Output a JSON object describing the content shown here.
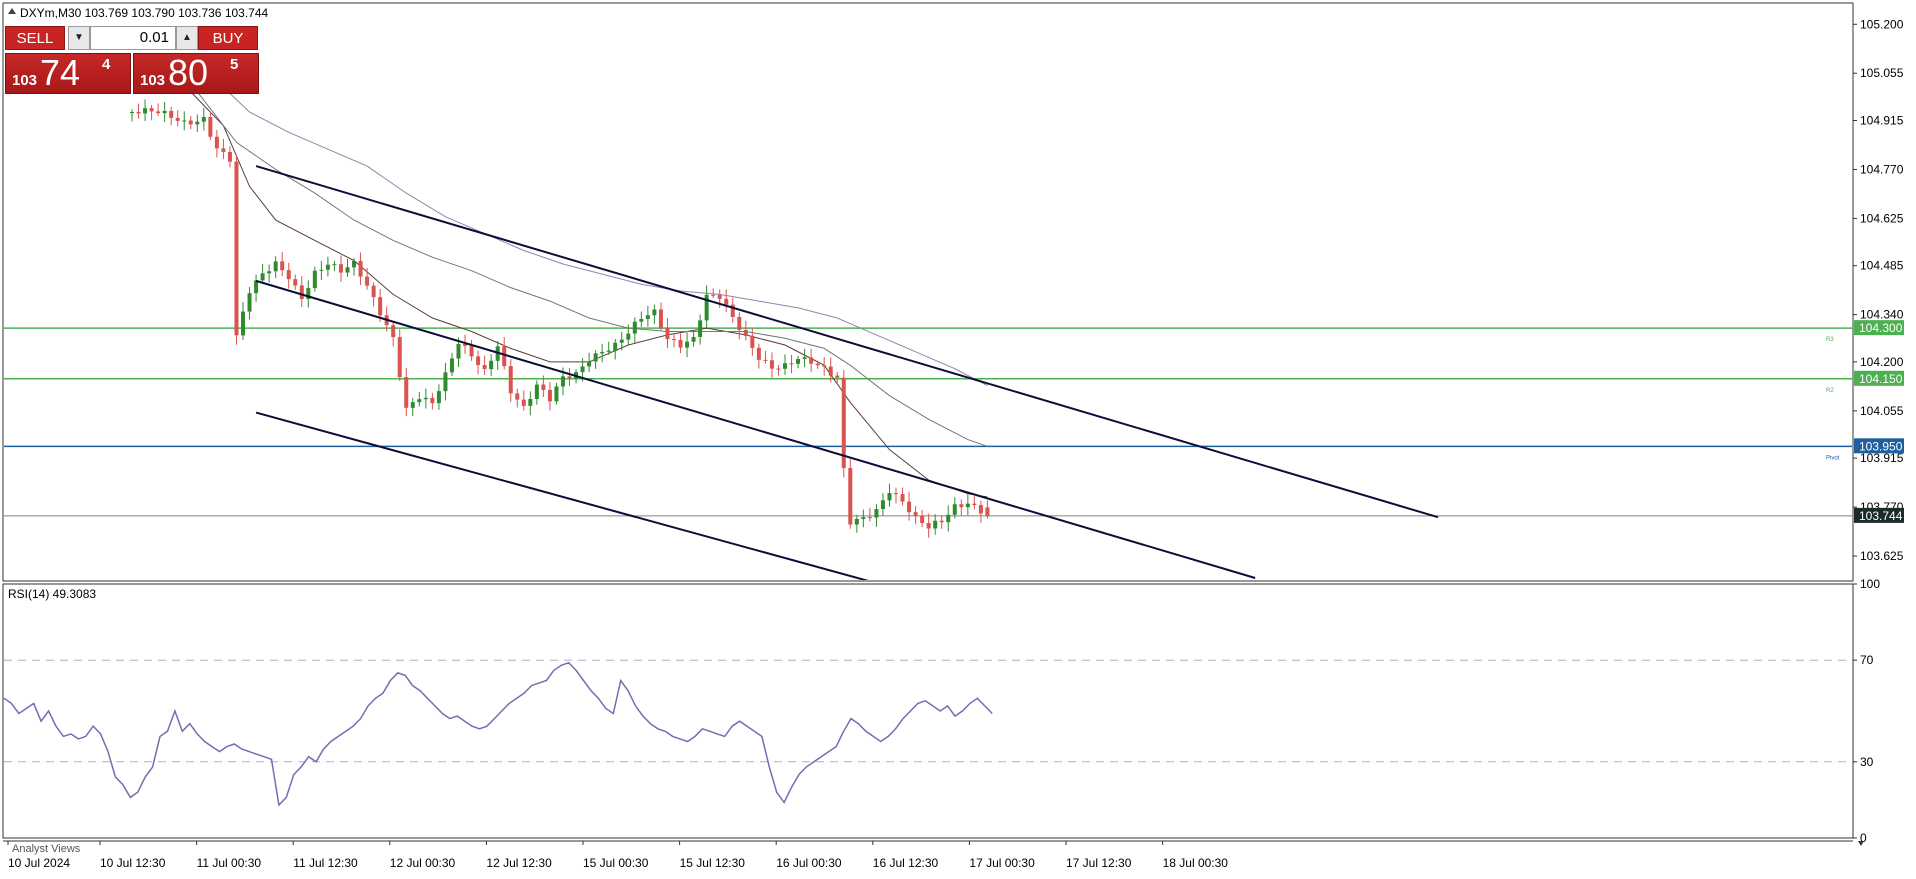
{
  "header": {
    "symbol_line": "DXYm,M30  103.769 103.790 103.736 103.744"
  },
  "trade_panel": {
    "sell_label": "SELL",
    "buy_label": "BUY",
    "lot": "0.01",
    "sell_price": {
      "prefix": "103",
      "big": "74",
      "sup": "4"
    },
    "buy_price": {
      "prefix": "103",
      "big": "80",
      "sup": "5"
    }
  },
  "rsi_label": "RSI(14) 49.3083",
  "footer_text": "Analyst Views",
  "colors": {
    "bull": "#2e8b2e",
    "bear": "#d9534f",
    "level_green": "#4caf50",
    "pivot_blue": "#1f5fa0",
    "channel": "#0d0d3a",
    "rsi_line": "#7a6ab0",
    "ma_fast": "#5b3a3a",
    "ma_mid": "#6e7a7a",
    "ma_slow": "#9a80a8"
  },
  "chart_data": [
    {
      "type": "candlestick",
      "symbol": "DXYm",
      "timeframe": "M30",
      "ohlc_last": {
        "open": 103.769,
        "high": 103.79,
        "low": 103.736,
        "close": 103.744
      },
      "ylim": [
        103.56,
        105.26
      ],
      "y_ticks": [
        "105.200",
        "105.055",
        "104.915",
        "104.770",
        "104.625",
        "104.485",
        "104.340",
        "104.200",
        "104.055",
        "103.915",
        "103.770",
        "103.625"
      ],
      "x_ticks": [
        "10 Jul 2024",
        "10 Jul 12:30",
        "11 Jul 00:30",
        "11 Jul 12:30",
        "12 Jul 00:30",
        "12 Jul 12:30",
        "15 Jul 00:30",
        "15 Jul 12:30",
        "16 Jul 00:30",
        "16 Jul 12:30",
        "17 Jul 00:30",
        "17 Jul 12:30",
        "18 Jul 00:30"
      ],
      "levels": [
        {
          "value": 104.3,
          "label": "104.300",
          "tag": "R3",
          "color": "#4caf50"
        },
        {
          "value": 104.15,
          "label": "104.150",
          "tag": "R2",
          "color": "#4caf50"
        },
        {
          "value": 103.95,
          "label": "103.950",
          "tag": "Pivot",
          "color": "#1f5fa0"
        }
      ],
      "current_price": {
        "value": 103.744,
        "label": "103.744"
      },
      "close_path": [
        [
          0,
          104.94
        ],
        [
          4,
          104.93
        ],
        [
          8,
          104.91
        ],
        [
          11,
          104.93
        ],
        [
          13,
          104.84
        ],
        [
          15,
          104.8
        ],
        [
          16,
          104.27
        ],
        [
          18,
          104.4
        ],
        [
          20,
          104.45
        ],
        [
          22,
          104.49
        ],
        [
          24,
          104.46
        ],
        [
          26,
          104.4
        ],
        [
          28,
          104.47
        ],
        [
          30,
          104.49
        ],
        [
          32,
          104.46
        ],
        [
          34,
          104.48
        ],
        [
          36,
          104.42
        ],
        [
          38,
          104.35
        ],
        [
          40,
          104.28
        ],
        [
          42,
          104.07
        ],
        [
          44,
          104.1
        ],
        [
          46,
          104.07
        ],
        [
          48,
          104.15
        ],
        [
          50,
          104.25
        ],
        [
          52,
          104.22
        ],
        [
          54,
          104.18
        ],
        [
          56,
          104.26
        ],
        [
          58,
          104.12
        ],
        [
          60,
          104.06
        ],
        [
          62,
          104.12
        ],
        [
          64,
          104.08
        ],
        [
          66,
          104.15
        ],
        [
          68,
          104.17
        ],
        [
          70,
          104.22
        ],
        [
          72,
          104.24
        ],
        [
          74,
          104.25
        ],
        [
          76,
          104.28
        ],
        [
          78,
          104.32
        ],
        [
          80,
          104.34
        ],
        [
          82,
          104.27
        ],
        [
          84,
          104.26
        ],
        [
          86,
          104.28
        ],
        [
          88,
          104.4
        ],
        [
          90,
          104.39
        ],
        [
          92,
          104.32
        ],
        [
          94,
          104.26
        ],
        [
          96,
          104.21
        ],
        [
          98,
          104.19
        ],
        [
          100,
          104.2
        ],
        [
          102,
          104.22
        ],
        [
          104,
          104.2
        ],
        [
          106,
          104.17
        ],
        [
          108,
          104.14
        ],
        [
          109,
          103.87
        ],
        [
          110,
          103.72
        ],
        [
          112,
          103.74
        ],
        [
          114,
          103.77
        ],
        [
          116,
          103.83
        ],
        [
          118,
          103.79
        ],
        [
          120,
          103.73
        ],
        [
          122,
          103.7
        ],
        [
          124,
          103.72
        ],
        [
          126,
          103.77
        ],
        [
          128,
          103.79
        ],
        [
          130,
          103.77
        ],
        [
          131,
          103.744
        ]
      ],
      "moving_averages": [
        {
          "name": "MA1",
          "values": [
            [
              8,
              105.02
            ],
            [
              14,
              104.9
            ],
            [
              18,
              104.72
            ],
            [
              22,
              104.62
            ],
            [
              28,
              104.56
            ],
            [
              34,
              104.5
            ],
            [
              40,
              104.4
            ],
            [
              46,
              104.33
            ],
            [
              52,
              104.29
            ],
            [
              58,
              104.24
            ],
            [
              64,
              104.2
            ],
            [
              70,
              104.2
            ],
            [
              76,
              104.25
            ],
            [
              82,
              104.28
            ],
            [
              88,
              104.3
            ],
            [
              94,
              104.28
            ],
            [
              100,
              104.25
            ],
            [
              106,
              104.19
            ],
            [
              110,
              104.08
            ],
            [
              116,
              103.94
            ],
            [
              122,
              103.85
            ],
            [
              128,
              103.81
            ],
            [
              131,
              103.8
            ]
          ]
        },
        {
          "name": "MA2",
          "values": [
            [
              10,
              105.0
            ],
            [
              16,
              104.85
            ],
            [
              22,
              104.77
            ],
            [
              28,
              104.7
            ],
            [
              34,
              104.62
            ],
            [
              40,
              104.56
            ],
            [
              46,
              104.51
            ],
            [
              52,
              104.47
            ],
            [
              58,
              104.42
            ],
            [
              64,
              104.38
            ],
            [
              70,
              104.33
            ],
            [
              76,
              104.3
            ],
            [
              82,
              104.29
            ],
            [
              88,
              104.29
            ],
            [
              94,
              104.29
            ],
            [
              100,
              104.27
            ],
            [
              106,
              104.24
            ],
            [
              110,
              104.19
            ],
            [
              116,
              104.1
            ],
            [
              122,
              104.03
            ],
            [
              128,
              103.97
            ],
            [
              131,
              103.95
            ]
          ]
        },
        {
          "name": "MA3",
          "values": [
            [
              12,
              105.05
            ],
            [
              18,
              104.94
            ],
            [
              24,
              104.88
            ],
            [
              30,
              104.83
            ],
            [
              36,
              104.78
            ],
            [
              42,
              104.7
            ],
            [
              48,
              104.63
            ],
            [
              54,
              104.58
            ],
            [
              60,
              104.53
            ],
            [
              66,
              104.49
            ],
            [
              72,
              104.46
            ],
            [
              78,
              104.43
            ],
            [
              84,
              104.41
            ],
            [
              90,
              104.4
            ],
            [
              96,
              104.38
            ],
            [
              102,
              104.36
            ],
            [
              108,
              104.33
            ],
            [
              114,
              104.28
            ],
            [
              120,
              104.23
            ],
            [
              126,
              104.18
            ],
            [
              131,
              104.13
            ]
          ]
        }
      ],
      "trendlines": [
        {
          "from": [
            19,
            104.78
          ],
          "to": [
            200,
            103.74
          ]
        },
        {
          "from": [
            19,
            104.44
          ],
          "to": [
            172,
            103.56
          ]
        },
        {
          "from": [
            19,
            104.05
          ],
          "to": [
            113,
            103.55
          ]
        }
      ]
    },
    {
      "type": "line",
      "name": "RSI(14)",
      "ylim": [
        0,
        100
      ],
      "y_ticks": [
        "100",
        "70",
        "30",
        "0"
      ],
      "levels": [
        70,
        30
      ],
      "values": [
        [
          0,
          55
        ],
        [
          2,
          53
        ],
        [
          4,
          49
        ],
        [
          6,
          51
        ],
        [
          8,
          53
        ],
        [
          10,
          46
        ],
        [
          12,
          50
        ],
        [
          14,
          44
        ],
        [
          16,
          40
        ],
        [
          18,
          41
        ],
        [
          20,
          39
        ],
        [
          22,
          40
        ],
        [
          24,
          44
        ],
        [
          26,
          41
        ],
        [
          28,
          34
        ],
        [
          30,
          24
        ],
        [
          32,
          21
        ],
        [
          34,
          16
        ],
        [
          36,
          18
        ],
        [
          38,
          24
        ],
        [
          40,
          28
        ],
        [
          42,
          40
        ],
        [
          44,
          42
        ],
        [
          46,
          50
        ],
        [
          48,
          42
        ],
        [
          50,
          45
        ],
        [
          52,
          41
        ],
        [
          54,
          38
        ],
        [
          56,
          36
        ],
        [
          58,
          34
        ],
        [
          60,
          36
        ],
        [
          62,
          37
        ],
        [
          64,
          35
        ],
        [
          66,
          34
        ],
        [
          68,
          33
        ],
        [
          70,
          32
        ],
        [
          72,
          31
        ],
        [
          74,
          13
        ],
        [
          76,
          16
        ],
        [
          78,
          25
        ],
        [
          80,
          28
        ],
        [
          82,
          32
        ],
        [
          84,
          30
        ],
        [
          86,
          35
        ],
        [
          88,
          38
        ],
        [
          90,
          40
        ],
        [
          92,
          42
        ],
        [
          94,
          44
        ],
        [
          96,
          47
        ],
        [
          98,
          52
        ],
        [
          100,
          55
        ],
        [
          102,
          57
        ],
        [
          104,
          62
        ],
        [
          106,
          65
        ],
        [
          108,
          64
        ],
        [
          110,
          60
        ],
        [
          112,
          58
        ],
        [
          114,
          55
        ],
        [
          116,
          52
        ],
        [
          118,
          49
        ],
        [
          120,
          47
        ],
        [
          122,
          48
        ],
        [
          124,
          46
        ],
        [
          126,
          44
        ],
        [
          128,
          43
        ],
        [
          130,
          44
        ],
        [
          132,
          47
        ],
        [
          134,
          50
        ],
        [
          136,
          53
        ],
        [
          138,
          55
        ],
        [
          140,
          57
        ],
        [
          142,
          60
        ],
        [
          144,
          61
        ],
        [
          146,
          62
        ],
        [
          148,
          66
        ],
        [
          150,
          68
        ],
        [
          152,
          69
        ],
        [
          154,
          66
        ],
        [
          156,
          62
        ],
        [
          158,
          58
        ],
        [
          160,
          55
        ],
        [
          162,
          51
        ],
        [
          164,
          49
        ],
        [
          166,
          62
        ],
        [
          168,
          58
        ],
        [
          170,
          52
        ],
        [
          172,
          48
        ],
        [
          174,
          45
        ],
        [
          176,
          43
        ],
        [
          178,
          42
        ],
        [
          180,
          40
        ],
        [
          182,
          39
        ],
        [
          184,
          38
        ],
        [
          186,
          40
        ],
        [
          188,
          43
        ],
        [
          190,
          42
        ],
        [
          192,
          41
        ],
        [
          194,
          40
        ],
        [
          196,
          44
        ],
        [
          198,
          46
        ],
        [
          200,
          44
        ],
        [
          202,
          42
        ],
        [
          204,
          40
        ],
        [
          206,
          28
        ],
        [
          208,
          18
        ],
        [
          210,
          14
        ],
        [
          212,
          20
        ],
        [
          214,
          25
        ],
        [
          216,
          28
        ],
        [
          218,
          30
        ],
        [
          220,
          32
        ],
        [
          222,
          34
        ],
        [
          224,
          36
        ],
        [
          226,
          42
        ],
        [
          228,
          47
        ],
        [
          230,
          45
        ],
        [
          232,
          42
        ],
        [
          234,
          40
        ],
        [
          236,
          38
        ],
        [
          238,
          40
        ],
        [
          240,
          43
        ],
        [
          242,
          47
        ],
        [
          244,
          50
        ],
        [
          246,
          53
        ],
        [
          248,
          54
        ],
        [
          250,
          52
        ],
        [
          252,
          50
        ],
        [
          254,
          52
        ],
        [
          256,
          48
        ],
        [
          258,
          50
        ],
        [
          260,
          53
        ],
        [
          262,
          55
        ],
        [
          264,
          52
        ],
        [
          266,
          49
        ]
      ]
    }
  ]
}
